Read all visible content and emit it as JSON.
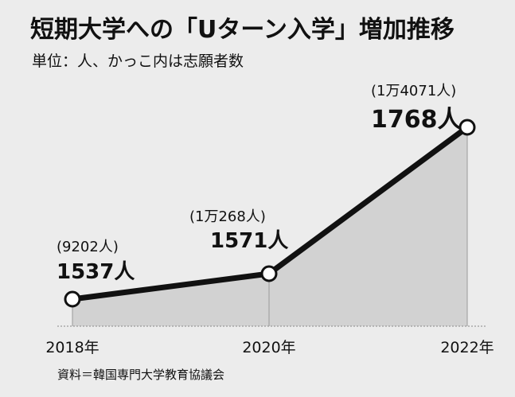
{
  "header": {
    "title": "短期大学への「Uターン入学」増加推移",
    "unit_note": "単位：人、かっこ内は志願者数"
  },
  "footer": {
    "source": "資料＝韓国専門大学教育協議会"
  },
  "colors": {
    "background": "#ececec",
    "area_fill": "#d2d2d2",
    "line": "#111111",
    "marker_fill": "#ffffff"
  },
  "chart_data": {
    "type": "area",
    "title": "短期大学への「Uターン入学」増加推移",
    "subtitle": "単位：人、かっこ内は志願者数",
    "categories": [
      "2018年",
      "2020年",
      "2022年"
    ],
    "series": [
      {
        "values": [
          1537,
          1571,
          1768
        ],
        "value_labels": [
          "1537人",
          "1571人",
          "1768人"
        ]
      }
    ],
    "applicants": {
      "values": [
        9202,
        10268,
        14071
      ],
      "labels": [
        "(9202人)",
        "(1万268人)",
        "(1万4071人)"
      ]
    },
    "grid": false,
    "legend": "none",
    "xlabel": "",
    "ylabel": ""
  }
}
